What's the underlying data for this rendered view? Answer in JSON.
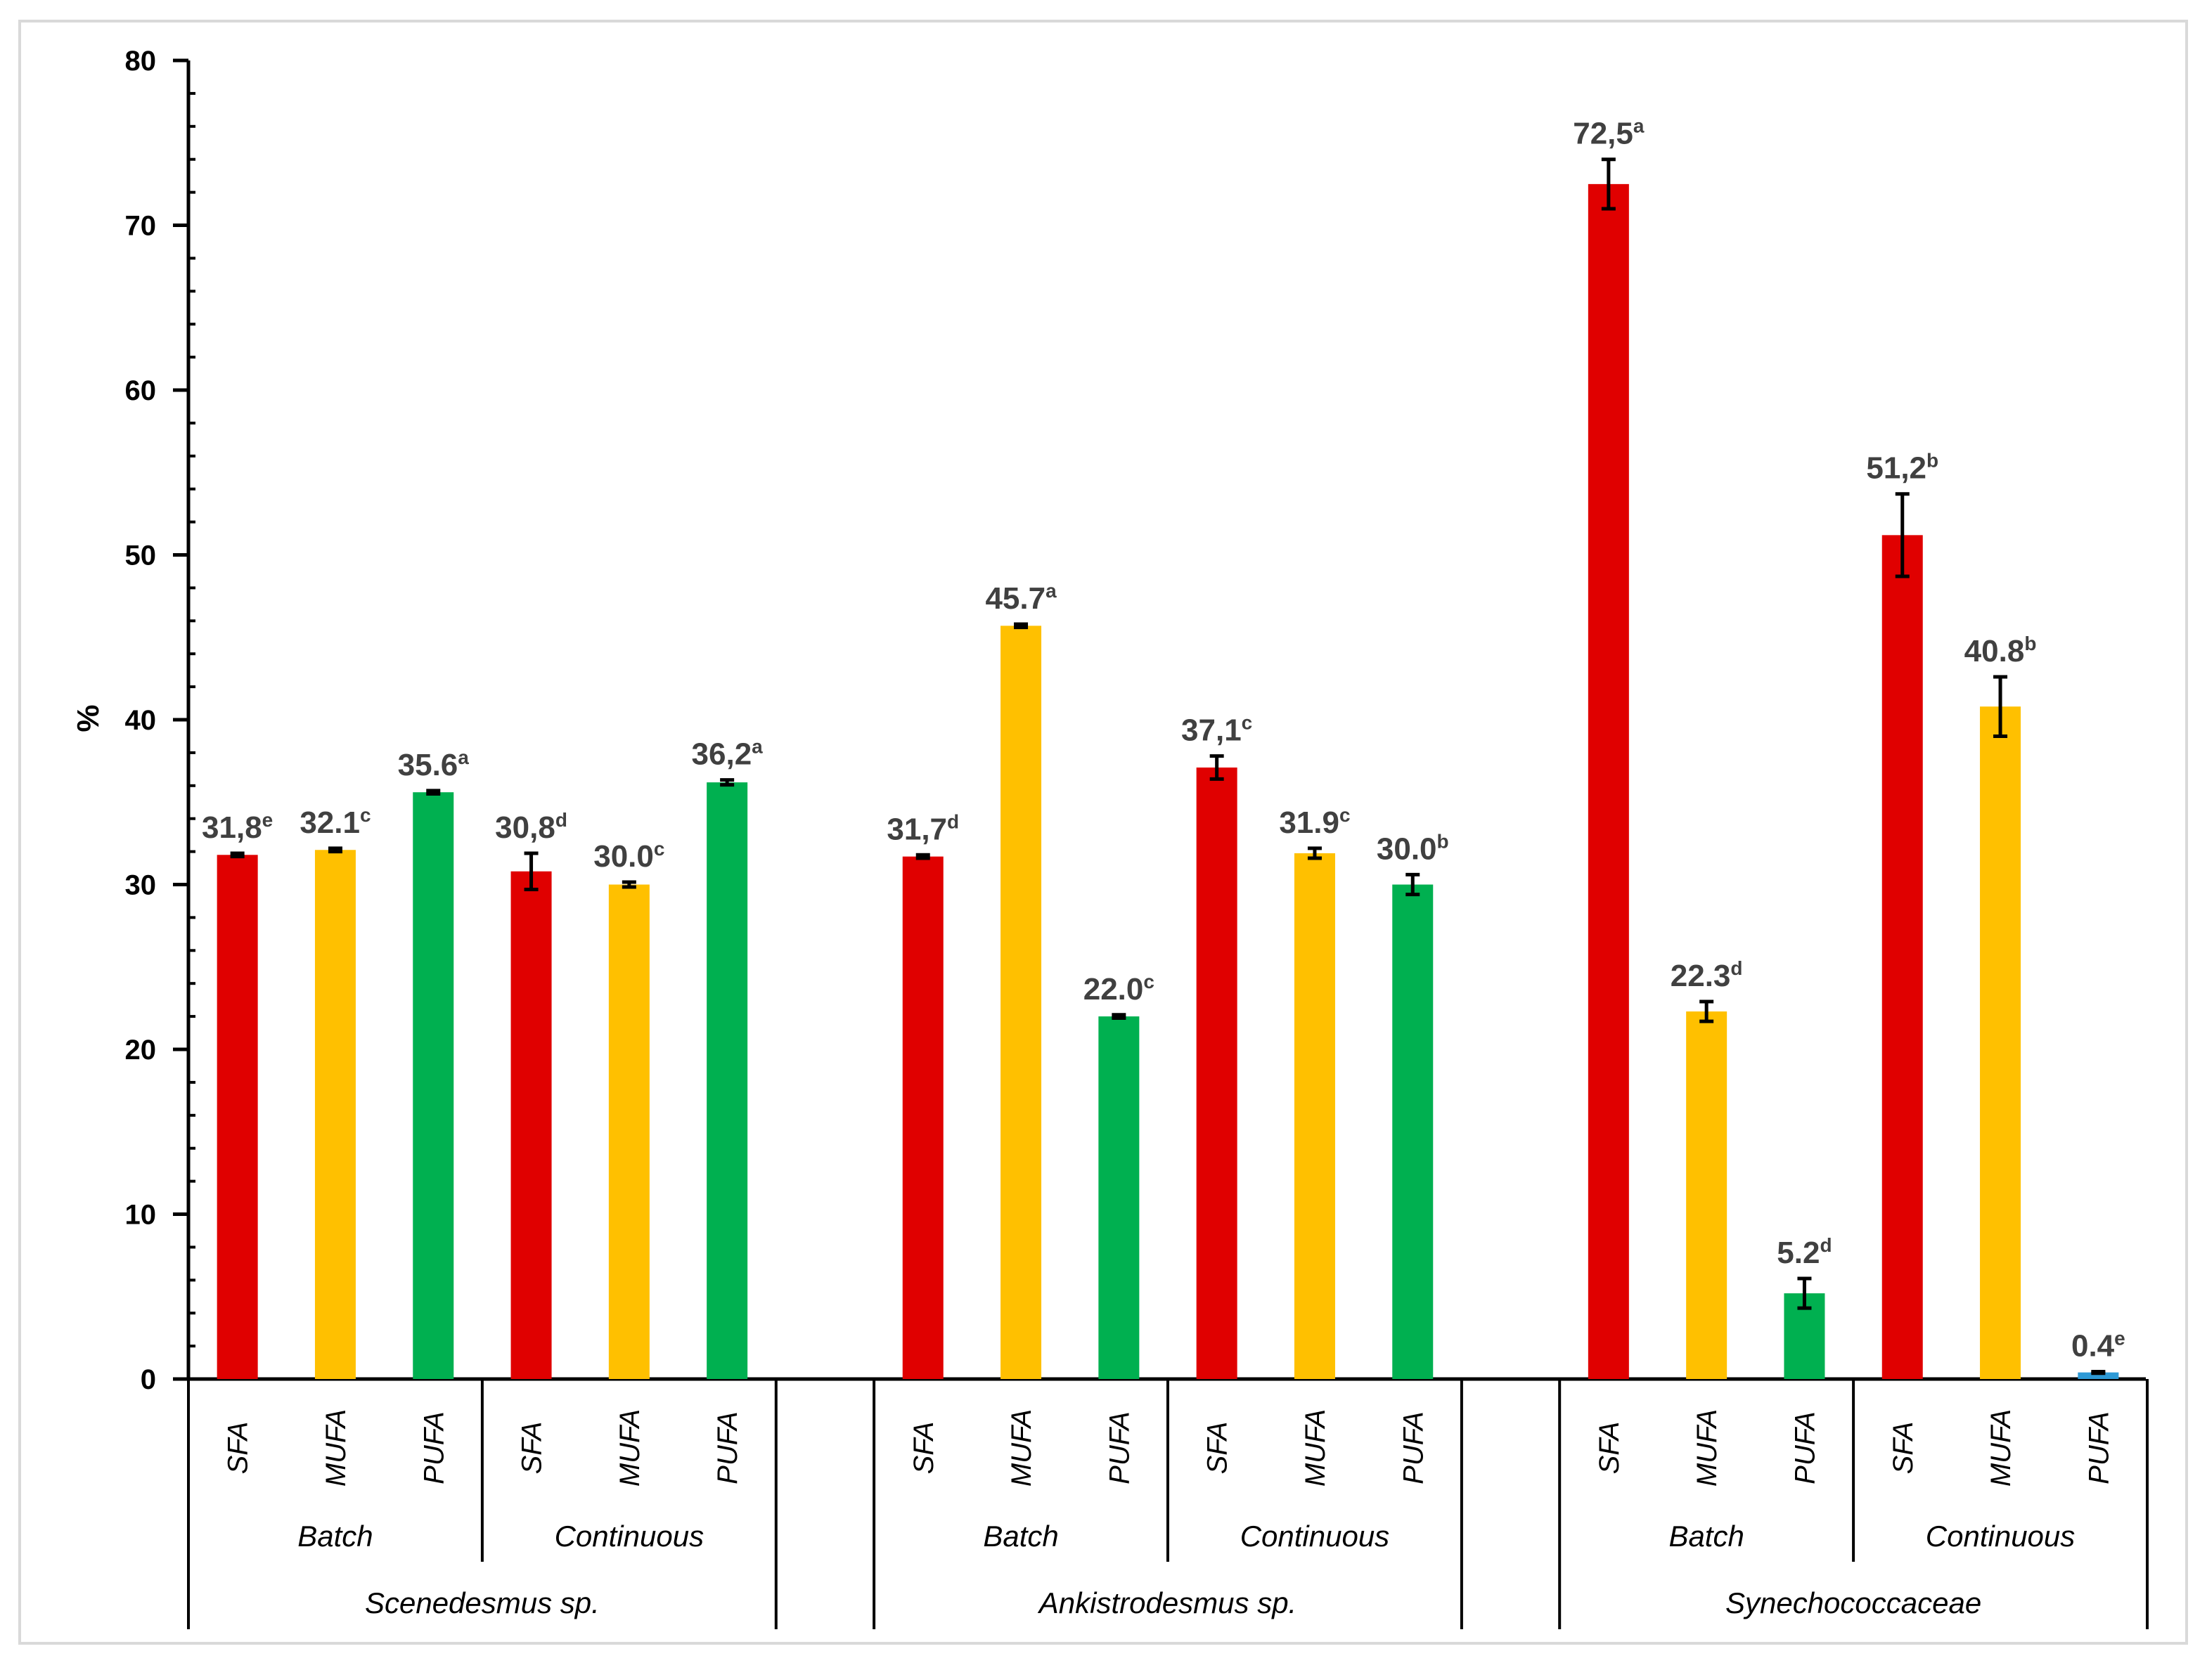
{
  "chart_data": {
    "type": "bar",
    "title": "",
    "ylabel": "%",
    "ylim": [
      0,
      80
    ],
    "yticks": [
      "0",
      "10",
      "20",
      "30",
      "40",
      "50",
      "60",
      "70",
      "80"
    ],
    "colors": {
      "SFA": "#e00000",
      "MUFA": "#ffc000",
      "PUFA": "#00b050",
      "PUFA_small": "#2e9ad6"
    },
    "groups": [
      {
        "organism": "Scenedesmus sp.",
        "modes": [
          {
            "mode": "Batch",
            "bars": [
              {
                "cat": "SFA",
                "value": 31.8,
                "err": 0.1,
                "label": "31,8",
                "sup": "e"
              },
              {
                "cat": "MUFA",
                "value": 32.1,
                "err": 0.1,
                "label": "32.1",
                "sup": "c"
              },
              {
                "cat": "PUFA",
                "value": 35.6,
                "err": 0.1,
                "label": "35.6",
                "sup": "a"
              }
            ]
          },
          {
            "mode": "Continuous",
            "bars": [
              {
                "cat": "SFA",
                "value": 30.8,
                "err": 1.1,
                "label": "30,8",
                "sup": "d"
              },
              {
                "cat": "MUFA",
                "value": 30.0,
                "err": 0.15,
                "label": "30.0",
                "sup": "c"
              },
              {
                "cat": "PUFA",
                "value": 36.2,
                "err": 0.15,
                "label": "36,2",
                "sup": "a"
              }
            ]
          }
        ]
      },
      {
        "organism": "Ankistrodesmus sp.",
        "modes": [
          {
            "mode": "Batch",
            "bars": [
              {
                "cat": "SFA",
                "value": 31.7,
                "err": 0.1,
                "label": "31,7",
                "sup": "d"
              },
              {
                "cat": "MUFA",
                "value": 45.7,
                "err": 0.1,
                "label": "45.7",
                "sup": "a"
              },
              {
                "cat": "PUFA",
                "value": 22.0,
                "err": 0.1,
                "label": "22.0",
                "sup": "c"
              }
            ]
          },
          {
            "mode": "Continuous",
            "bars": [
              {
                "cat": "SFA",
                "value": 37.1,
                "err": 0.7,
                "label": "37,1",
                "sup": "c"
              },
              {
                "cat": "MUFA",
                "value": 31.9,
                "err": 0.3,
                "label": "31.9",
                "sup": "c"
              },
              {
                "cat": "PUFA",
                "value": 30.0,
                "err": 0.6,
                "label": "30.0",
                "sup": "b"
              }
            ]
          }
        ]
      },
      {
        "organism": "Synechococcaceae",
        "modes": [
          {
            "mode": "Batch",
            "bars": [
              {
                "cat": "SFA",
                "value": 72.5,
                "err": 1.5,
                "label": "72,5",
                "sup": "a"
              },
              {
                "cat": "MUFA",
                "value": 22.3,
                "err": 0.6,
                "label": "22.3",
                "sup": "d"
              },
              {
                "cat": "PUFA",
                "value": 5.2,
                "err": 0.9,
                "label": "5.2",
                "sup": "d"
              }
            ]
          },
          {
            "mode": "Continuous",
            "bars": [
              {
                "cat": "SFA",
                "value": 51.2,
                "err": 2.5,
                "label": "51,2",
                "sup": "b"
              },
              {
                "cat": "MUFA",
                "value": 40.8,
                "err": 1.8,
                "label": "40.8",
                "sup": "b"
              },
              {
                "cat": "PUFA",
                "value": 0.4,
                "err": 0.05,
                "label": "0.4",
                "sup": "e"
              }
            ]
          }
        ]
      }
    ]
  }
}
